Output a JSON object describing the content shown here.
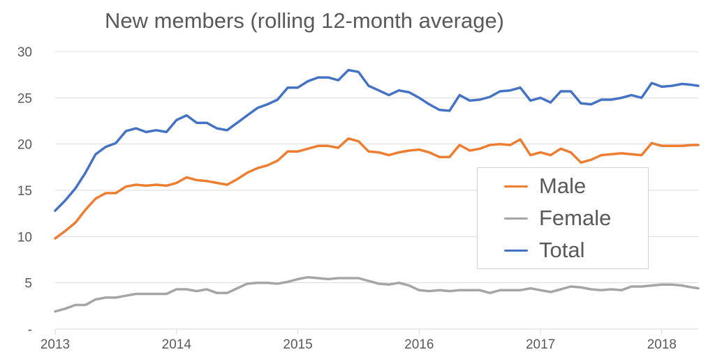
{
  "chart_data": {
    "type": "line",
    "title": "New members (rolling 12-month average)",
    "xlabel": "",
    "ylabel": "",
    "ylim": [
      0,
      30
    ],
    "xlim": [
      2013,
      2018.3
    ],
    "y_ticks": [
      "-",
      "5",
      "10",
      "15",
      "20",
      "25",
      "30"
    ],
    "x_ticks": [
      "2013",
      "2014",
      "2015",
      "2016",
      "2017",
      "2018"
    ],
    "grid": "horizontal",
    "legend_position": "right",
    "x": [
      2013.0,
      2013.083,
      2013.167,
      2013.25,
      2013.333,
      2013.417,
      2013.5,
      2013.583,
      2013.667,
      2013.75,
      2013.833,
      2013.917,
      2014.0,
      2014.083,
      2014.167,
      2014.25,
      2014.333,
      2014.417,
      2014.5,
      2014.583,
      2014.667,
      2014.75,
      2014.833,
      2014.917,
      2015.0,
      2015.083,
      2015.167,
      2015.25,
      2015.333,
      2015.417,
      2015.5,
      2015.583,
      2015.667,
      2015.75,
      2015.833,
      2015.917,
      2016.0,
      2016.083,
      2016.167,
      2016.25,
      2016.333,
      2016.417,
      2016.5,
      2016.583,
      2016.667,
      2016.75,
      2016.833,
      2016.917,
      2017.0,
      2017.083,
      2017.167,
      2017.25,
      2017.333,
      2017.417,
      2017.5,
      2017.583,
      2017.667,
      2017.75,
      2017.833,
      2017.917,
      2018.0,
      2018.083,
      2018.167,
      2018.25,
      2018.3
    ],
    "series": [
      {
        "name": "Male",
        "color": "#ed7d31",
        "values": [
          9.8,
          10.6,
          11.5,
          12.9,
          14.1,
          14.7,
          14.7,
          15.4,
          15.6,
          15.5,
          15.6,
          15.5,
          15.8,
          16.4,
          16.1,
          16.0,
          15.8,
          15.6,
          16.2,
          16.9,
          17.4,
          17.7,
          18.2,
          19.2,
          19.2,
          19.5,
          19.8,
          19.8,
          19.6,
          20.6,
          20.3,
          19.2,
          19.1,
          18.8,
          19.1,
          19.3,
          19.4,
          19.1,
          18.6,
          18.6,
          19.9,
          19.3,
          19.5,
          19.9,
          20.0,
          19.9,
          20.5,
          18.8,
          19.1,
          18.8,
          19.5,
          19.1,
          18.0,
          18.3,
          18.8,
          18.9,
          19.0,
          18.9,
          18.8,
          20.1,
          19.8,
          19.8,
          19.8,
          19.9,
          19.9
        ]
      },
      {
        "name": "Female",
        "color": "#a5a5a5",
        "values": [
          1.9,
          2.2,
          2.6,
          2.6,
          3.2,
          3.4,
          3.4,
          3.6,
          3.8,
          3.8,
          3.8,
          3.8,
          4.3,
          4.3,
          4.1,
          4.3,
          3.9,
          3.9,
          4.4,
          4.9,
          5.0,
          5.0,
          4.9,
          5.1,
          5.4,
          5.6,
          5.5,
          5.4,
          5.5,
          5.5,
          5.5,
          5.2,
          4.9,
          4.8,
          5.0,
          4.7,
          4.2,
          4.1,
          4.2,
          4.1,
          4.2,
          4.2,
          4.2,
          3.9,
          4.2,
          4.2,
          4.2,
          4.4,
          4.2,
          4.0,
          4.3,
          4.6,
          4.5,
          4.3,
          4.2,
          4.3,
          4.2,
          4.6,
          4.6,
          4.7,
          4.8,
          4.8,
          4.7,
          4.5,
          4.4
        ]
      },
      {
        "name": "Total",
        "color": "#4472c4",
        "values": [
          12.8,
          13.9,
          15.2,
          16.9,
          18.9,
          19.7,
          20.1,
          21.4,
          21.7,
          21.3,
          21.5,
          21.3,
          22.6,
          23.1,
          22.3,
          22.3,
          21.7,
          21.5,
          22.3,
          23.1,
          23.9,
          24.3,
          24.8,
          26.1,
          26.1,
          26.8,
          27.2,
          27.2,
          26.9,
          28.0,
          27.8,
          26.3,
          25.8,
          25.3,
          25.8,
          25.6,
          25.0,
          24.3,
          23.7,
          23.6,
          25.3,
          24.7,
          24.8,
          25.1,
          25.7,
          25.8,
          26.1,
          24.7,
          25.0,
          24.5,
          25.7,
          25.7,
          24.4,
          24.3,
          24.8,
          24.8,
          25.0,
          25.3,
          25.0,
          26.6,
          26.2,
          26.3,
          26.5,
          26.4,
          26.3
        ]
      }
    ]
  }
}
